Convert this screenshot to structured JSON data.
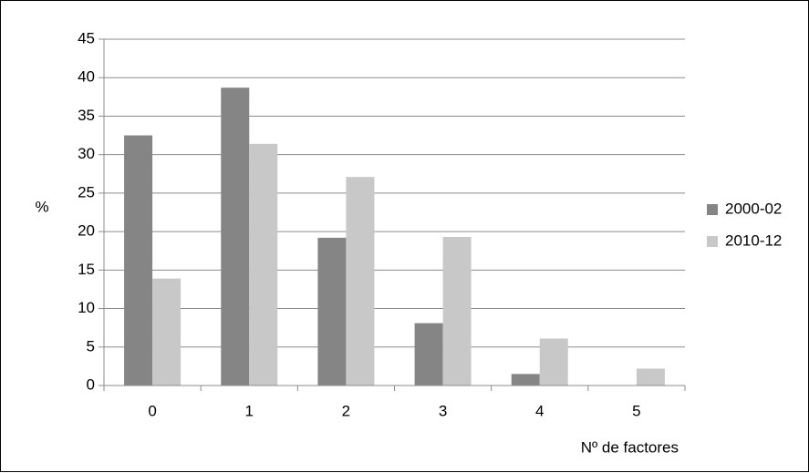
{
  "chart_data": {
    "type": "bar",
    "categories": [
      "0",
      "1",
      "2",
      "3",
      "4",
      "5"
    ],
    "series": [
      {
        "name": "2000-02",
        "values": [
          32.5,
          38.7,
          19.2,
          8.1,
          1.5,
          0.0
        ],
        "color": "#858585"
      },
      {
        "name": "2010-12",
        "values": [
          13.9,
          31.4,
          27.1,
          19.3,
          6.1,
          2.2
        ],
        "color": "#c8c8c8"
      }
    ],
    "xlabel": "Nº de factores",
    "ylabel": "%",
    "ylim": [
      0,
      45
    ],
    "yticks": [
      "0",
      "5",
      "10",
      "15",
      "20",
      "25",
      "30",
      "35",
      "40",
      "45"
    ],
    "grid": true,
    "legend_position": "right"
  }
}
